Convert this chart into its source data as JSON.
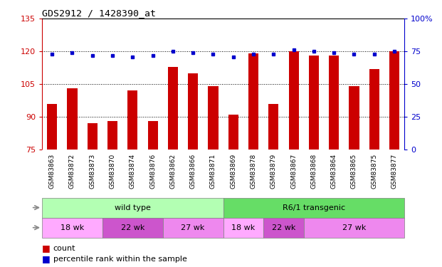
{
  "title": "GDS2912 / 1428390_at",
  "samples": [
    "GSM83863",
    "GSM83872",
    "GSM83873",
    "GSM83870",
    "GSM83874",
    "GSM83876",
    "GSM83862",
    "GSM83866",
    "GSM83871",
    "GSM83869",
    "GSM83878",
    "GSM83879",
    "GSM83867",
    "GSM83868",
    "GSM83864",
    "GSM83865",
    "GSM83875",
    "GSM83877"
  ],
  "counts": [
    96,
    103,
    87,
    88,
    102,
    88,
    113,
    110,
    104,
    91,
    119,
    96,
    120,
    118,
    118,
    104,
    112,
    120
  ],
  "percentiles": [
    73,
    74,
    72,
    72,
    71,
    72,
    75,
    74,
    73,
    71,
    73,
    73,
    76,
    75,
    74,
    73,
    73,
    75
  ],
  "ylim_left": [
    75,
    135
  ],
  "ylim_right": [
    0,
    100
  ],
  "yticks_left": [
    75,
    90,
    105,
    120,
    135
  ],
  "yticks_right": [
    0,
    25,
    50,
    75,
    100
  ],
  "bar_color": "#cc0000",
  "dot_color": "#0000cc",
  "strain_groups": [
    {
      "label": "wild type",
      "start": 0,
      "end": 9,
      "color": "#b3ffb3"
    },
    {
      "label": "R6/1 transgenic",
      "start": 9,
      "end": 18,
      "color": "#66dd66"
    }
  ],
  "age_groups": [
    {
      "label": "18 wk",
      "start": 0,
      "end": 3,
      "color": "#ffaaff"
    },
    {
      "label": "22 wk",
      "start": 3,
      "end": 6,
      "color": "#cc55cc"
    },
    {
      "label": "27 wk",
      "start": 6,
      "end": 9,
      "color": "#ee88ee"
    },
    {
      "label": "18 wk",
      "start": 9,
      "end": 11,
      "color": "#ffaaff"
    },
    {
      "label": "22 wk",
      "start": 11,
      "end": 13,
      "color": "#cc55cc"
    },
    {
      "label": "27 wk",
      "start": 13,
      "end": 18,
      "color": "#ee88ee"
    }
  ],
  "tick_label_color": "#cc0000",
  "right_tick_color": "#0000cc",
  "xtick_bg_color": "#cccccc",
  "plot_bg_color": "#ffffff",
  "label_color": "#888888"
}
